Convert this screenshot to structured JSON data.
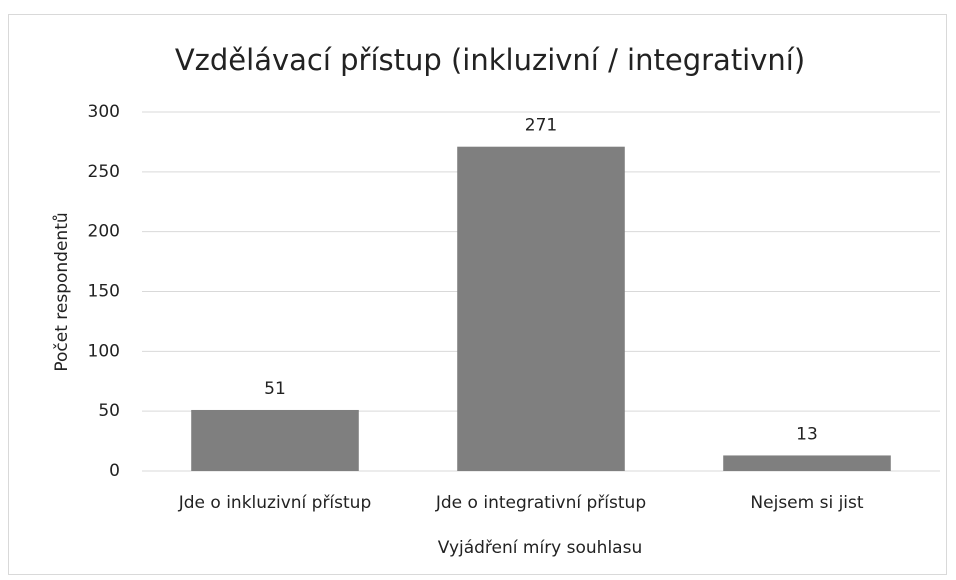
{
  "chart_data": {
    "type": "bar",
    "title": "Vzdělávací přístup (inkluzivní / integrativní)",
    "x_label": "Vyjádření míry souhlasu",
    "y_label": "Počet respondentů",
    "categories": [
      "Jde o inkluzivní přístup",
      "Jde o integrativní přístup",
      "Nejsem si jist"
    ],
    "values": [
      51,
      271,
      13
    ],
    "color": "#7f7f7f",
    "ylim": [
      0,
      300
    ],
    "yticks": [
      0,
      50,
      100,
      150,
      200,
      250,
      300
    ],
    "grid": true,
    "data_labels": true
  }
}
